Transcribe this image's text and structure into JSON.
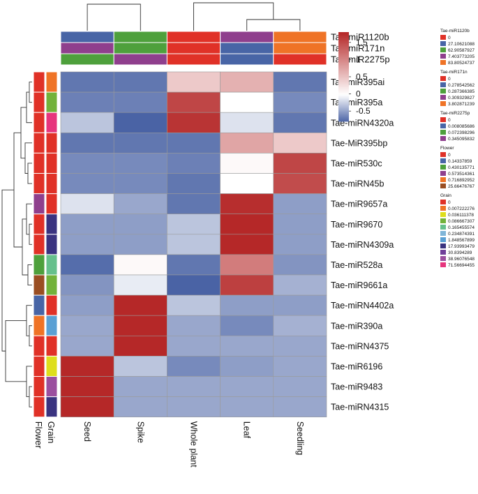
{
  "chart_data": {
    "type": "heatmap",
    "columns": [
      "Seed",
      "Spike",
      "Whole plant",
      "Leaf",
      "Seedling"
    ],
    "rows": [
      "Tae-miR395ai",
      "Tae-miR395a",
      "Tae-miRN4320a",
      "Tae-MiR395bp",
      "Tae-miR530c",
      "Tae-miRN45b",
      "Tae-miR9657a",
      "Tae-miR9670",
      "Tae-miRN4309a",
      "Tae-miR528a",
      "Tae-miR9661a",
      "Tae-miRN4402a",
      "Tae-miR390a",
      "Tae-miRN4375",
      "Tae-miR6196",
      "Tae-miR9483",
      "Tae-miRN4315"
    ],
    "values": [
      [
        -0.7,
        -0.7,
        0.45,
        0.65,
        -0.7
      ],
      [
        -0.65,
        -0.65,
        1.55,
        0.0,
        -0.6
      ],
      [
        -0.3,
        -0.8,
        1.7,
        -0.15,
        -0.7
      ],
      [
        -0.7,
        -0.7,
        -0.7,
        0.75,
        0.45
      ],
      [
        -0.6,
        -0.6,
        -0.65,
        0.05,
        1.55
      ],
      [
        -0.6,
        -0.6,
        -0.7,
        0.0,
        1.5
      ],
      [
        -0.15,
        -0.45,
        -0.7,
        1.75,
        -0.5
      ],
      [
        -0.5,
        -0.5,
        -0.3,
        1.8,
        -0.5
      ],
      [
        -0.5,
        -0.5,
        -0.3,
        1.8,
        -0.5
      ],
      [
        -0.75,
        0.05,
        -0.7,
        1.1,
        -0.55
      ],
      [
        -0.55,
        -0.1,
        -0.8,
        1.6,
        -0.4
      ],
      [
        -0.5,
        1.8,
        -0.3,
        -0.5,
        -0.5
      ],
      [
        -0.45,
        1.8,
        -0.45,
        -0.6,
        -0.4
      ],
      [
        -0.45,
        1.8,
        -0.45,
        -0.45,
        -0.45
      ],
      [
        1.8,
        -0.3,
        -0.6,
        -0.5,
        -0.45
      ],
      [
        1.8,
        -0.45,
        -0.45,
        -0.45,
        -0.45
      ],
      [
        1.8,
        -0.45,
        -0.45,
        -0.45,
        -0.45
      ]
    ],
    "color_scale": {
      "range": [
        -0.8,
        1.8
      ],
      "ticks": [
        -0.5,
        0,
        0.5,
        1,
        1.5
      ],
      "tick_labels": [
        "-0.5",
        "0",
        "0.5",
        "1",
        "1.5"
      ],
      "colors": [
        "#4a63a5",
        "#ffffff",
        "#b52828"
      ]
    },
    "column_annotations": [
      {
        "name": "Tae-miR1120b",
        "labels": [
          "27.10621088",
          "62.90587927",
          "0",
          "7.403773205",
          "83.80524737"
        ]
      },
      {
        "name": "Tae-miR171n",
        "labels": [
          "0.309329827",
          "0.287366385",
          "0",
          "0.278542562",
          "3.802871239"
        ]
      },
      {
        "name": "Tae-miR2275p",
        "labels": [
          "0.072398296",
          "0.345095832",
          "0",
          "0.008085686",
          "0"
        ]
      }
    ],
    "row_annotations": [
      {
        "name": "Flower",
        "labels": [
          "0",
          "0",
          "0",
          "0",
          "0",
          "0",
          "0.573514361",
          "0",
          "0",
          "0.430135771",
          "25.66476767",
          "0.14337859",
          "0.716892952",
          "0",
          "0",
          "0",
          "0"
        ]
      },
      {
        "name": "Grain",
        "labels": [
          "0.007222276",
          "0.086667307",
          "71.56694455",
          "0",
          "0",
          "0",
          "0",
          "17.93993479",
          "17.93993479",
          "0.165455574",
          "0.086667307",
          "0",
          "1.848567899",
          "0",
          "0.036111378",
          "38.96076548",
          "17.93993479"
        ]
      }
    ],
    "legends": [
      {
        "title": "Tae-miR1120b",
        "items": [
          {
            "label": "0",
            "color": "#e03127"
          },
          {
            "label": "27.10621088",
            "color": "#4865a6"
          },
          {
            "label": "62.90587927",
            "color": "#4ea03c"
          },
          {
            "label": "7.403773205",
            "color": "#8f3f8d"
          },
          {
            "label": "83.80524737",
            "color": "#ef7326"
          }
        ]
      },
      {
        "title": "Tae-miR171n",
        "items": [
          {
            "label": "0",
            "color": "#e03127"
          },
          {
            "label": "0.278542562",
            "color": "#4865a6"
          },
          {
            "label": "0.287366385",
            "color": "#4ea03c"
          },
          {
            "label": "0.309329827",
            "color": "#8f3f8d"
          },
          {
            "label": "3.802871239",
            "color": "#ef7326"
          }
        ]
      },
      {
        "title": "Tae-miR2275p",
        "items": [
          {
            "label": "0",
            "color": "#e03127"
          },
          {
            "label": "0.008085686",
            "color": "#4865a6"
          },
          {
            "label": "0.072398296",
            "color": "#4ea03c"
          },
          {
            "label": "0.345095832",
            "color": "#8f3f8d"
          }
        ]
      },
      {
        "title": "Flower",
        "items": [
          {
            "label": "0",
            "color": "#e03127"
          },
          {
            "label": "0.14337859",
            "color": "#4865a6"
          },
          {
            "label": "0.430135771",
            "color": "#4ea03c"
          },
          {
            "label": "0.573514361",
            "color": "#8f3f8d"
          },
          {
            "label": "0.716892952",
            "color": "#ef7326"
          },
          {
            "label": "25.66476767",
            "color": "#9a4e22"
          }
        ]
      },
      {
        "title": "Grain",
        "items": [
          {
            "label": "0",
            "color": "#e03127"
          },
          {
            "label": "0.007222276",
            "color": "#ef7326"
          },
          {
            "label": "0.036111378",
            "color": "#dede1c"
          },
          {
            "label": "0.086667307",
            "color": "#72b23a"
          },
          {
            "label": "0.165455574",
            "color": "#66c08c"
          },
          {
            "label": "0.234874391",
            "color": "#7fb5d8"
          },
          {
            "label": "1.848567899",
            "color": "#5aa0d4"
          },
          {
            "label": "17.93993479",
            "color": "#3a3380"
          },
          {
            "label": "30.8394289",
            "color": "#6f3f99"
          },
          {
            "label": "38.96076548",
            "color": "#9b4f9f"
          },
          {
            "label": "71.56694455",
            "color": "#e6357d"
          }
        ]
      }
    ]
  }
}
